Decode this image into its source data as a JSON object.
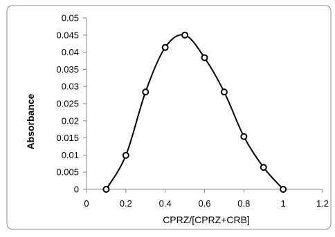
{
  "chart_data": {
    "type": "scatter",
    "title": "",
    "xlabel": "CPRZ/[CPRZ+CRB]",
    "ylabel": "Absorbance",
    "xlim": [
      0,
      1.2
    ],
    "ylim": [
      0,
      0.05
    ],
    "x_ticks": [
      0,
      0.2,
      0.4,
      0.6,
      0.8,
      1,
      1.2
    ],
    "x_tick_labels": [
      "0",
      "0.2",
      "0.4",
      "0.6",
      "0.8",
      "1",
      "1.2"
    ],
    "y_ticks": [
      0,
      0.005,
      0.01,
      0.015,
      0.02,
      0.025,
      0.03,
      0.035,
      0.04,
      0.045,
      0.05
    ],
    "y_tick_labels": [
      "0",
      "0.005",
      "0.01",
      "0.015",
      "0.02",
      "0.025",
      "0.03",
      "0.035",
      "0.04",
      "0.045",
      "0.05"
    ],
    "grid": false,
    "legend": "none",
    "marker": "open-circle",
    "line": "smooth",
    "series": [
      {
        "x": [
          0.1,
          0.2,
          0.3,
          0.4,
          0.5,
          0.6,
          0.7,
          0.8,
          0.9,
          1.0
        ],
        "y": [
          0.0,
          0.0099,
          0.0284,
          0.0414,
          0.045,
          0.0384,
          0.0284,
          0.0154,
          0.0064,
          0.0
        ],
        "color": "#000000"
      }
    ]
  }
}
